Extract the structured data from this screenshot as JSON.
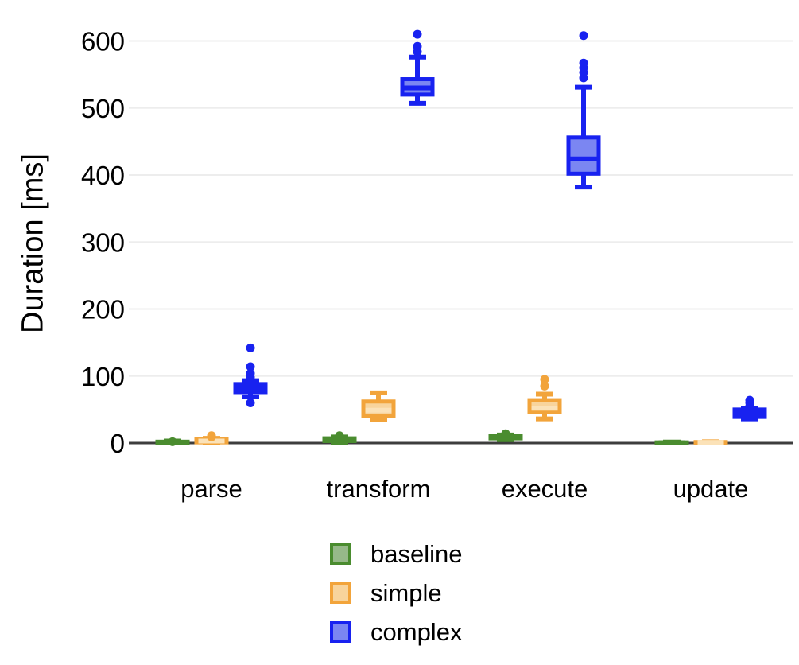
{
  "chart_data": {
    "type": "boxplot",
    "ylabel": "Duration [ms]",
    "categories": [
      "parse",
      "transform",
      "execute",
      "update"
    ],
    "yticks": [
      0,
      100,
      200,
      300,
      400,
      500,
      600
    ],
    "ylim": [
      0,
      620
    ],
    "grid": "horizontal-light-gray",
    "legend_position": "bottom",
    "axis_color": "#3d3d3d",
    "gridline_color": "#ededed",
    "series": [
      {
        "name": "baseline",
        "stroke": "#4a8c2f",
        "fill": "#96b989",
        "median_color": "#4a8c2f",
        "boxes": [
          {
            "category": "parse",
            "whislo": 0,
            "q1": 0.5,
            "med": 1,
            "q3": 2,
            "whishi": 3,
            "outliers": [
              2
            ]
          },
          {
            "category": "transform",
            "whislo": 1,
            "q1": 3,
            "med": 5,
            "q3": 7,
            "whishi": 9,
            "outliers": [
              11
            ]
          },
          {
            "category": "execute",
            "whislo": 5,
            "q1": 7,
            "med": 9,
            "q3": 11,
            "whishi": 12,
            "outliers": [
              14
            ]
          },
          {
            "category": "update",
            "whislo": 0,
            "q1": 0,
            "med": 0.5,
            "q3": 1,
            "whishi": 1.5,
            "outliers": []
          }
        ]
      },
      {
        "name": "simple",
        "stroke": "#f2a43b",
        "fill": "#f8d49c",
        "median_color": "#fbe2b8",
        "boxes": [
          {
            "category": "parse",
            "whislo": 0,
            "q1": 1,
            "med": 3,
            "q3": 6,
            "whishi": 7,
            "outliers": [
              9,
              11
            ]
          },
          {
            "category": "transform",
            "whislo": 35,
            "q1": 40,
            "med": 49,
            "q3": 62,
            "whishi": 75,
            "outliers": []
          },
          {
            "category": "execute",
            "whislo": 36,
            "q1": 46,
            "med": 52,
            "q3": 64,
            "whishi": 73,
            "outliers": [
              85,
              95
            ]
          },
          {
            "category": "update",
            "whislo": 0,
            "q1": 0,
            "med": 1,
            "q3": 1.5,
            "whishi": 2,
            "outliers": []
          }
        ]
      },
      {
        "name": "complex",
        "stroke": "#1822f0",
        "fill": "#7b86f2",
        "median_color": "#1822f0",
        "boxes": [
          {
            "category": "parse",
            "whislo": 69,
            "q1": 76,
            "med": 82,
            "q3": 88,
            "whishi": 93,
            "outliers": [
              60,
              98,
              104,
              114,
              142
            ]
          },
          {
            "category": "transform",
            "whislo": 507,
            "q1": 520,
            "med": 530,
            "q3": 543,
            "whishi": 576,
            "outliers": [
              584,
              592,
              610
            ]
          },
          {
            "category": "execute",
            "whislo": 382,
            "q1": 402,
            "med": 424,
            "q3": 456,
            "whishi": 531,
            "outliers": [
              545,
              553,
              560,
              567,
              608
            ]
          },
          {
            "category": "update",
            "whislo": 36,
            "q1": 39,
            "med": 45,
            "q3": 50,
            "whishi": 52,
            "outliers": [
              55,
              60,
              64
            ]
          }
        ]
      }
    ]
  }
}
